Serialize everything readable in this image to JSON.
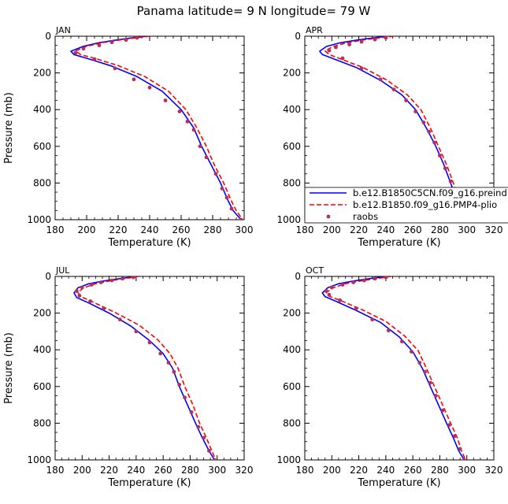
{
  "title": "Panama   latitude= 9 N longitude= 79 W",
  "legend": {
    "entries": [
      {
        "name": "b.e12.B1850C5CN.f09_g16.preind",
        "color": "#0000ff",
        "style": "solid"
      },
      {
        "name": "b.e12.B1850.f09_g16.PMP4-plio",
        "color": "#ff0000",
        "style": "dashed"
      },
      {
        "name": "raobs",
        "color": "#b03060",
        "style": "marker"
      }
    ]
  },
  "colors": {
    "model1": "#0000ff",
    "model2": "#ff0000",
    "raobs": "#b03060"
  },
  "chart_data": [
    {
      "type": "line",
      "panel": "JAN",
      "xlabel": "Temperature (K)",
      "ylabel": "Pressure (mb)",
      "xlim": [
        180,
        300
      ],
      "ylim": [
        1000,
        0
      ],
      "y_inverted": true,
      "xticks": [
        180,
        200,
        220,
        240,
        260,
        280,
        300
      ],
      "yticks": [
        0,
        200,
        400,
        600,
        800,
        1000
      ],
      "series": [
        {
          "name": "b.e12.B1850C5CN.f09_g16.preind",
          "points": [
            [
              238,
              0
            ],
            [
              228,
              10
            ],
            [
              218,
              22
            ],
            [
              208,
              35
            ],
            [
              198,
              55
            ],
            [
              190,
              82
            ],
            [
              192,
              100
            ],
            [
              200,
              120
            ],
            [
              215,
              160
            ],
            [
              232,
              220
            ],
            [
              248,
              300
            ],
            [
              260,
              400
            ],
            [
              268,
              500
            ],
            [
              273,
              600
            ],
            [
              279,
              700
            ],
            [
              285,
              800
            ],
            [
              290,
              900
            ],
            [
              293,
              950
            ],
            [
              298,
              1000
            ]
          ]
        },
        {
          "name": "b.e12.B1850.f09_g16.PMP4-plio",
          "points": [
            [
              240,
              0
            ],
            [
              230,
              10
            ],
            [
              220,
              22
            ],
            [
              210,
              35
            ],
            [
              200,
              55
            ],
            [
              193,
              80
            ],
            [
              196,
              100
            ],
            [
              205,
              120
            ],
            [
              220,
              160
            ],
            [
              237,
              220
            ],
            [
              252,
              300
            ],
            [
              263,
              400
            ],
            [
              270,
              500
            ],
            [
              276,
              600
            ],
            [
              281,
              700
            ],
            [
              287,
              800
            ],
            [
              292,
              900
            ],
            [
              295,
              950
            ],
            [
              299,
              1000
            ]
          ]
        },
        {
          "name": "raobs",
          "points": [
            [
              232,
              8
            ],
            [
              225,
              20
            ],
            [
              216,
              33
            ],
            [
              208,
              50
            ],
            [
              198,
              68
            ],
            [
              193,
              90
            ],
            [
              205,
              125
            ],
            [
              218,
              175
            ],
            [
              230,
              235
            ],
            [
              240,
              280
            ],
            [
              250,
              350
            ],
            [
              259,
              410
            ],
            [
              264,
              465
            ],
            [
              268,
              510
            ],
            [
              272,
              600
            ],
            [
              276,
              660
            ],
            [
              282,
              750
            ],
            [
              286,
              830
            ],
            [
              289,
              880
            ],
            [
              292,
              940
            ],
            [
              298,
              1000
            ]
          ]
        }
      ]
    },
    {
      "type": "line",
      "panel": "APR",
      "xlabel": "Temperature (K)",
      "ylabel": "",
      "xlim": [
        180,
        320
      ],
      "ylim": [
        1000,
        0
      ],
      "y_inverted": true,
      "xticks": [
        180,
        200,
        220,
        240,
        260,
        280,
        300,
        320
      ],
      "yticks": [
        0,
        200,
        400,
        600,
        800,
        1000
      ],
      "series": [
        {
          "name": "b.e12.B1850C5CN.f09_g16.preind",
          "points": [
            [
              241,
              0
            ],
            [
              230,
              10
            ],
            [
              218,
              22
            ],
            [
              206,
              36
            ],
            [
              196,
              56
            ],
            [
              191,
              82
            ],
            [
              193,
              100
            ],
            [
              202,
              125
            ],
            [
              218,
              170
            ],
            [
              236,
              240
            ],
            [
              252,
              320
            ],
            [
              262,
              400
            ],
            [
              270,
              500
            ],
            [
              277,
              600
            ],
            [
              283,
              700
            ],
            [
              288,
              800
            ],
            [
              293,
              900
            ],
            [
              297,
              960
            ],
            [
              300,
              1000
            ]
          ]
        },
        {
          "name": "b.e12.B1850.f09_g16.PMP4-plio",
          "points": [
            [
              246,
              0
            ],
            [
              234,
              10
            ],
            [
              222,
              22
            ],
            [
              211,
              36
            ],
            [
              201,
              56
            ],
            [
              195,
              80
            ],
            [
              198,
              100
            ],
            [
              207,
              125
            ],
            [
              223,
              170
            ],
            [
              241,
              240
            ],
            [
              256,
              320
            ],
            [
              266,
              400
            ],
            [
              273,
              500
            ],
            [
              279,
              600
            ],
            [
              285,
              700
            ],
            [
              290,
              800
            ],
            [
              295,
              900
            ],
            [
              298,
              960
            ],
            [
              301,
              1000
            ]
          ]
        },
        {
          "name": "raobs",
          "points": [
            [
              240,
              8
            ],
            [
              232,
              18
            ],
            [
              222,
              30
            ],
            [
              213,
              45
            ],
            [
              203,
              60
            ],
            [
              198,
              78
            ],
            [
              208,
              120
            ],
            [
              222,
              175
            ],
            [
              236,
              235
            ],
            [
              246,
              290
            ],
            [
              255,
              350
            ],
            [
              262,
              410
            ],
            [
              268,
              470
            ],
            [
              272,
              520
            ],
            [
              276,
              580
            ],
            [
              280,
              650
            ],
            [
              284,
              720
            ],
            [
              288,
              790
            ],
            [
              291,
              870
            ],
            [
              294,
              920
            ],
            [
              300,
              1000
            ]
          ]
        }
      ]
    },
    {
      "type": "line",
      "panel": "JUL",
      "xlabel": "Temperature (K)",
      "ylabel": "Pressure (mb)",
      "xlim": [
        180,
        320
      ],
      "ylim": [
        1000,
        0
      ],
      "y_inverted": true,
      "xticks": [
        180,
        200,
        220,
        240,
        260,
        280,
        300,
        320
      ],
      "yticks": [
        0,
        200,
        400,
        600,
        800,
        1000
      ],
      "series": [
        {
          "name": "b.e12.B1850C5CN.f09_g16.preind",
          "points": [
            [
              240,
              0
            ],
            [
              228,
              12
            ],
            [
              216,
              25
            ],
            [
              205,
              40
            ],
            [
              197,
              62
            ],
            [
              194,
              90
            ],
            [
              196,
              115
            ],
            [
              205,
              145
            ],
            [
              220,
              200
            ],
            [
              236,
              270
            ],
            [
              250,
              350
            ],
            [
              260,
              420
            ],
            [
              267,
              500
            ],
            [
              272,
              600
            ],
            [
              278,
              700
            ],
            [
              284,
              800
            ],
            [
              289,
              880
            ],
            [
              294,
              950
            ],
            [
              298,
              1000
            ]
          ]
        },
        {
          "name": "b.e12.B1850.f09_g16.PMP4-plio",
          "points": [
            [
              242,
              0
            ],
            [
              231,
              12
            ],
            [
              220,
              25
            ],
            [
              210,
              40
            ],
            [
              201,
              62
            ],
            [
              197,
              88
            ],
            [
              199,
              110
            ],
            [
              208,
              140
            ],
            [
              224,
              195
            ],
            [
              242,
              265
            ],
            [
              256,
              345
            ],
            [
              265,
              420
            ],
            [
              271,
              500
            ],
            [
              276,
              600
            ],
            [
              282,
              700
            ],
            [
              287,
              800
            ],
            [
              292,
              880
            ],
            [
              296,
              950
            ],
            [
              299,
              1000
            ]
          ]
        },
        {
          "name": "raobs",
          "points": [
            [
              238,
              5
            ],
            [
              230,
              12
            ],
            [
              222,
              22
            ],
            [
              214,
              32
            ],
            [
              207,
              45
            ],
            [
              200,
              60
            ],
            [
              196,
              80
            ],
            [
              198,
              105
            ],
            [
              206,
              135
            ],
            [
              216,
              175
            ],
            [
              228,
              235
            ],
            [
              240,
              300
            ],
            [
              250,
              360
            ],
            [
              258,
              420
            ],
            [
              264,
              470
            ],
            [
              268,
              520
            ],
            [
              272,
              590
            ],
            [
              276,
              660
            ],
            [
              281,
              740
            ],
            [
              286,
              820
            ],
            [
              290,
              880
            ],
            [
              294,
              950
            ],
            [
              298,
              1000
            ]
          ]
        }
      ]
    },
    {
      "type": "line",
      "panel": "OCT",
      "xlabel": "Temperature (K)",
      "ylabel": "",
      "xlim": [
        180,
        320
      ],
      "ylim": [
        1000,
        0
      ],
      "y_inverted": true,
      "xticks": [
        180,
        200,
        220,
        240,
        260,
        280,
        300,
        320
      ],
      "yticks": [
        0,
        200,
        400,
        600,
        800,
        1000
      ],
      "series": [
        {
          "name": "b.e12.B1850C5CN.f09_g16.preind",
          "points": [
            [
              240,
              0
            ],
            [
              228,
              12
            ],
            [
              216,
              25
            ],
            [
              205,
              40
            ],
            [
              197,
              62
            ],
            [
              193,
              90
            ],
            [
              195,
              110
            ],
            [
              203,
              135
            ],
            [
              218,
              185
            ],
            [
              236,
              250
            ],
            [
              250,
              330
            ],
            [
              260,
              410
            ],
            [
              267,
              500
            ],
            [
              273,
              600
            ],
            [
              279,
              700
            ],
            [
              285,
              800
            ],
            [
              290,
              880
            ],
            [
              294,
              950
            ],
            [
              298,
              1000
            ]
          ]
        },
        {
          "name": "b.e12.B1850.f09_g16.PMP4-plio",
          "points": [
            [
              244,
              0
            ],
            [
              233,
              12
            ],
            [
              221,
              25
            ],
            [
              210,
              40
            ],
            [
              201,
              62
            ],
            [
              196,
              88
            ],
            [
              198,
              108
            ],
            [
              206,
              130
            ],
            [
              222,
              180
            ],
            [
              240,
              245
            ],
            [
              254,
              325
            ],
            [
              264,
              405
            ],
            [
              270,
              500
            ],
            [
              276,
              600
            ],
            [
              282,
              700
            ],
            [
              288,
              800
            ],
            [
              293,
              880
            ],
            [
              296,
              950
            ],
            [
              299,
              1000
            ]
          ]
        },
        {
          "name": "raobs",
          "points": [
            [
              240,
              5
            ],
            [
              232,
              12
            ],
            [
              224,
              22
            ],
            [
              216,
              32
            ],
            [
              208,
              45
            ],
            [
              200,
              60
            ],
            [
              196,
              80
            ],
            [
              198,
              100
            ],
            [
              206,
              130
            ],
            [
              218,
              175
            ],
            [
              230,
              235
            ],
            [
              242,
              295
            ],
            [
              252,
              355
            ],
            [
              259,
              410
            ],
            [
              265,
              470
            ],
            [
              269,
              520
            ],
            [
              273,
              580
            ],
            [
              277,
              650
            ],
            [
              282,
              730
            ],
            [
              287,
              810
            ],
            [
              291,
              870
            ],
            [
              295,
              940
            ],
            [
              298,
              1000
            ]
          ]
        }
      ]
    }
  ]
}
